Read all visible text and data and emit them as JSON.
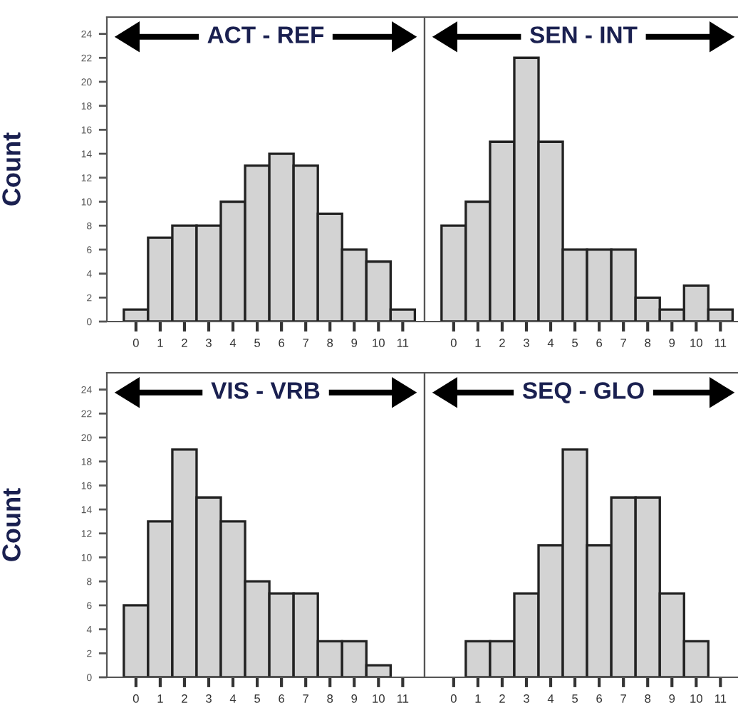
{
  "chart_data": [
    {
      "type": "bar",
      "title": "ACT - REF",
      "ylabel": "Count",
      "categories": [
        "0",
        "1",
        "2",
        "3",
        "4",
        "5",
        "6",
        "7",
        "8",
        "9",
        "10",
        "11"
      ],
      "values": [
        1,
        7,
        8,
        8,
        10,
        13,
        14,
        13,
        9,
        6,
        5,
        1
      ],
      "color": "#d3d3d3",
      "ylim": [
        0,
        25.4
      ],
      "yticks": [
        0,
        2,
        4,
        6,
        8,
        10,
        12,
        14,
        16,
        18,
        20,
        22,
        24
      ],
      "grid": false
    },
    {
      "type": "bar",
      "title": "SEN - INT",
      "categories": [
        "0",
        "1",
        "2",
        "3",
        "4",
        "5",
        "6",
        "7",
        "8",
        "9",
        "10",
        "11"
      ],
      "values": [
        8,
        10,
        15,
        22,
        15,
        6,
        6,
        6,
        2,
        1,
        3,
        1
      ],
      "color": "#d3d3d3",
      "ylim": [
        0,
        25.4
      ],
      "yticks": [
        0,
        2,
        4,
        6,
        8,
        10,
        12,
        14,
        16,
        18,
        20,
        22,
        24
      ],
      "tick_labels": "x",
      "grid": false
    },
    {
      "type": "bar",
      "title": "VIS - VRB",
      "ylabel": "Count",
      "categories": [
        "0",
        "1",
        "2",
        "3",
        "4",
        "5",
        "6",
        "7",
        "8",
        "9",
        "10",
        "11"
      ],
      "values": [
        6,
        13,
        19,
        15,
        13,
        8,
        7,
        7,
        3,
        3,
        1,
        0
      ],
      "color": "#d3d3d3",
      "ylim": [
        0,
        25.4
      ],
      "yticks": [
        0,
        2,
        4,
        6,
        8,
        10,
        12,
        14,
        16,
        18,
        20,
        22,
        24
      ],
      "grid": false
    },
    {
      "type": "bar",
      "title": "SEQ - GLO",
      "categories": [
        "0",
        "1",
        "2",
        "3",
        "4",
        "5",
        "6",
        "7",
        "8",
        "9",
        "10",
        "11"
      ],
      "values": [
        0,
        3,
        3,
        7,
        11,
        19,
        11,
        15,
        15,
        7,
        3,
        0
      ],
      "color": "#d3d3d3",
      "ylim": [
        0,
        25.4
      ],
      "yticks": [
        0,
        2,
        4,
        6,
        8,
        10,
        12,
        14,
        16,
        18,
        20,
        22,
        24
      ],
      "tick_labels": "x",
      "grid": false
    }
  ]
}
